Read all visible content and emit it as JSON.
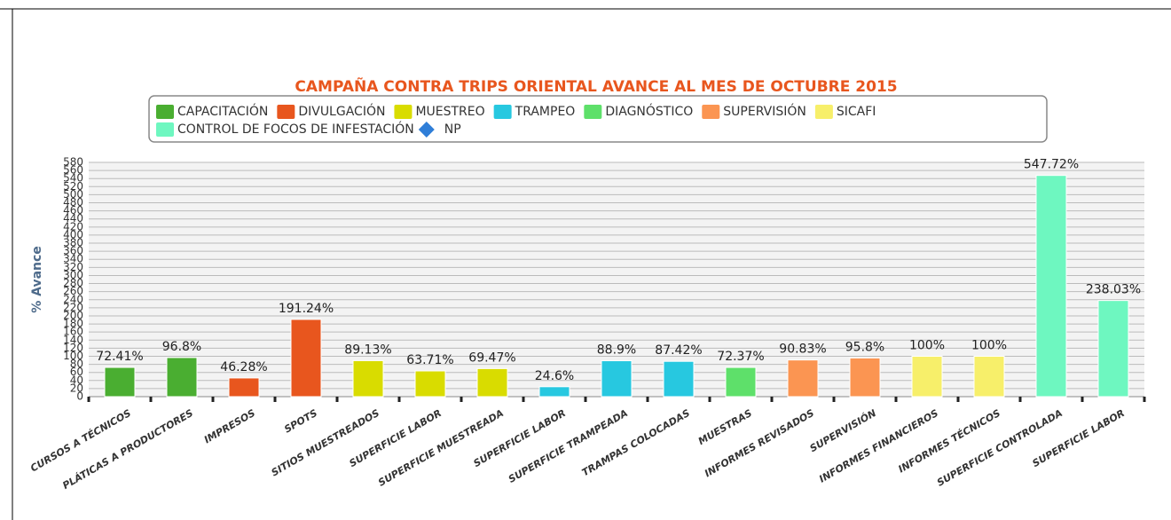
{
  "chart_data": {
    "type": "bar",
    "title": "CAMPAÑA CONTRA TRIPS ORIENTAL AVANCE AL MES DE OCTUBRE 2015",
    "y_axis_label": "% Avance",
    "categories": [
      "CURSOS A TÉCNICOS",
      "PLÁTICAS A PRODUCTORES",
      "IMPRESOS",
      "SPOTS",
      "SITIOS MUESTREADOS",
      "SUPERFICIE LABOR",
      "SUPERFICIE MUESTREADA",
      "SUPERFICIE LABOR",
      "SUPERFICIE TRAMPEADA",
      "TRAMPAS COLOCADAS",
      "MUESTRAS",
      "INFORMES REVISADOS",
      "SUPERVISIÓN",
      "INFORMES FINANCIEROS",
      "INFORMES TÉCNICOS",
      "SUPERFICIE CONTROLADA",
      "SUPERFICIE LABOR"
    ],
    "series": [
      {
        "name": "CAPACITACIÓN",
        "color": "#4aae31",
        "values": [
          72.41,
          96.8,
          null,
          null,
          null,
          null,
          null,
          null,
          null,
          null,
          null,
          null,
          null,
          null,
          null,
          null,
          null
        ],
        "value_labels": [
          "72.41%",
          "96.8%",
          null,
          null,
          null,
          null,
          null,
          null,
          null,
          null,
          null,
          null,
          null,
          null,
          null,
          null,
          null
        ]
      },
      {
        "name": "DIVULGACIÓN",
        "color": "#e8561e",
        "values": [
          null,
          null,
          46.28,
          191.24,
          null,
          null,
          null,
          null,
          null,
          null,
          null,
          null,
          null,
          null,
          null,
          null,
          null
        ],
        "value_labels": [
          null,
          null,
          "46.28%",
          "191.24%",
          null,
          null,
          null,
          null,
          null,
          null,
          null,
          null,
          null,
          null,
          null,
          null,
          null
        ]
      },
      {
        "name": "MUESTREO",
        "color": "#d9dc00",
        "values": [
          null,
          null,
          null,
          null,
          89.13,
          63.71,
          69.47,
          null,
          null,
          null,
          null,
          null,
          null,
          null,
          null,
          null,
          null
        ],
        "value_labels": [
          null,
          null,
          null,
          null,
          "89.13%",
          "63.71%",
          "69.47%",
          null,
          null,
          null,
          null,
          null,
          null,
          null,
          null,
          null,
          null
        ]
      },
      {
        "name": "TRAMPEO",
        "color": "#27c8e0",
        "values": [
          null,
          null,
          null,
          null,
          null,
          null,
          null,
          24.6,
          88.9,
          87.42,
          null,
          null,
          null,
          null,
          null,
          null,
          null
        ],
        "value_labels": [
          null,
          null,
          null,
          null,
          null,
          null,
          null,
          "24.6%",
          "88.9%",
          "87.42%",
          null,
          null,
          null,
          null,
          null,
          null,
          null
        ]
      },
      {
        "name": "DIAGNÓSTICO",
        "color": "#5ee06a",
        "values": [
          null,
          null,
          null,
          null,
          null,
          null,
          null,
          null,
          null,
          null,
          72.37,
          null,
          null,
          null,
          null,
          null,
          null
        ],
        "value_labels": [
          null,
          null,
          null,
          null,
          null,
          null,
          null,
          null,
          null,
          null,
          "72.37%",
          null,
          null,
          null,
          null,
          null,
          null
        ]
      },
      {
        "name": "SUPERVISIÓN",
        "color": "#fb9552",
        "values": [
          null,
          null,
          null,
          null,
          null,
          null,
          null,
          null,
          null,
          null,
          null,
          90.83,
          95.8,
          null,
          null,
          null,
          null
        ],
        "value_labels": [
          null,
          null,
          null,
          null,
          null,
          null,
          null,
          null,
          null,
          null,
          null,
          "90.83%",
          "95.8%",
          null,
          null,
          null,
          null
        ]
      },
      {
        "name": "SICAFI",
        "color": "#f7ef6a",
        "values": [
          null,
          null,
          null,
          null,
          null,
          null,
          null,
          null,
          null,
          null,
          null,
          null,
          null,
          100,
          100,
          null,
          null
        ],
        "value_labels": [
          null,
          null,
          null,
          null,
          null,
          null,
          null,
          null,
          null,
          null,
          null,
          null,
          null,
          "100%",
          "100%",
          null,
          null
        ]
      },
      {
        "name": "CONTROL DE FOCOS DE INFESTACIÓN",
        "color": "#6ef7c0",
        "values": [
          null,
          null,
          null,
          null,
          null,
          null,
          null,
          null,
          null,
          null,
          null,
          null,
          null,
          null,
          null,
          547.72,
          238.03
        ],
        "value_labels": [
          null,
          null,
          null,
          null,
          null,
          null,
          null,
          null,
          null,
          null,
          null,
          null,
          null,
          null,
          null,
          "547.72%",
          "238.03%"
        ]
      },
      {
        "name": "NP",
        "color": "#2f7ed8",
        "marker": "diamond",
        "values": [
          null,
          null,
          null,
          null,
          null,
          null,
          null,
          null,
          null,
          null,
          null,
          null,
          null,
          null,
          null,
          null,
          null
        ]
      }
    ],
    "ylim": [
      0,
      580
    ],
    "yticks": [
      0,
      20,
      40,
      60,
      80,
      100,
      120,
      140,
      160,
      180,
      200,
      220,
      240,
      260,
      280,
      300,
      320,
      340,
      360,
      380,
      400,
      420,
      440,
      460,
      480,
      500,
      520,
      540,
      560,
      580
    ],
    "grid": true
  }
}
